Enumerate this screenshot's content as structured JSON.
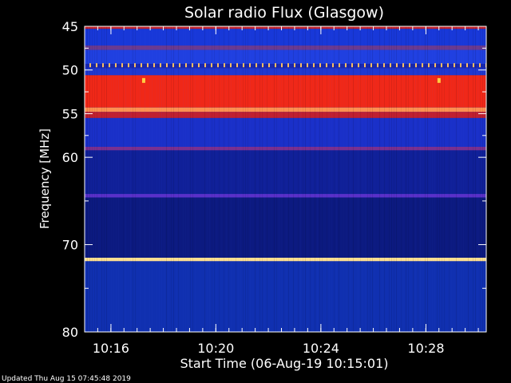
{
  "chart_data": {
    "type": "heatmap",
    "title": "Solar radio Flux (Glasgow)",
    "xlabel": "Start Time (06-Aug-19 10:15:01)",
    "ylabel": "Frequency [MHz]",
    "xlim_minutes": [
      10.25,
      10.505
    ],
    "ylim_mhz": [
      45,
      80
    ],
    "y_ticks": [
      {
        "value": 45,
        "label": "45"
      },
      {
        "value": 50,
        "label": "50"
      },
      {
        "value": 55,
        "label": "55"
      },
      {
        "value": 60,
        "label": "60"
      },
      {
        "value": 70,
        "label": "70"
      },
      {
        "value": 80,
        "label": "80"
      }
    ],
    "x_ticks": [
      {
        "value": 10.2667,
        "label": "10:16"
      },
      {
        "value": 10.3333,
        "label": "10:20"
      },
      {
        "value": 10.4,
        "label": "10:24"
      },
      {
        "value": 10.4667,
        "label": "10:28"
      }
    ],
    "bands": [
      {
        "from": 45.0,
        "to": 45.3,
        "color": "#c0202a"
      },
      {
        "from": 45.3,
        "to": 47.2,
        "color": "#1838d8"
      },
      {
        "from": 47.2,
        "to": 47.7,
        "color": "#6a3a90"
      },
      {
        "from": 47.7,
        "to": 49.3,
        "color": "#2040e0"
      },
      {
        "from": 49.3,
        "to": 49.8,
        "color": "#1a28b0"
      },
      {
        "from": 49.8,
        "to": 50.6,
        "color": "#2038d0"
      },
      {
        "from": 50.6,
        "to": 54.3,
        "color": "#f02818"
      },
      {
        "from": 54.3,
        "to": 54.8,
        "color": "#ff9050"
      },
      {
        "from": 54.8,
        "to": 55.5,
        "color": "#c02030"
      },
      {
        "from": 55.5,
        "to": 58.8,
        "color": "#1a30c8"
      },
      {
        "from": 58.8,
        "to": 59.2,
        "color": "#7a3090"
      },
      {
        "from": 59.2,
        "to": 64.2,
        "color": "#102098"
      },
      {
        "from": 64.2,
        "to": 64.6,
        "color": "#5a30c8"
      },
      {
        "from": 64.6,
        "to": 71.5,
        "color": "#0c1a80"
      },
      {
        "from": 71.5,
        "to": 71.9,
        "color": "#ffe090"
      },
      {
        "from": 71.9,
        "to": 80.0,
        "color": "#1030b0"
      }
    ],
    "bursts": [
      {
        "time": 10.2875,
        "freq": 51.2,
        "color": "#ffcc40"
      },
      {
        "time": 10.475,
        "freq": 51.2,
        "color": "#ffcc40"
      }
    ],
    "interference_line": {
      "freq": 49.5,
      "color": "#ffc060"
    },
    "axis_color": "#ffffff",
    "footer": "Updated Thu Aug 15 07:45:48 2019"
  }
}
